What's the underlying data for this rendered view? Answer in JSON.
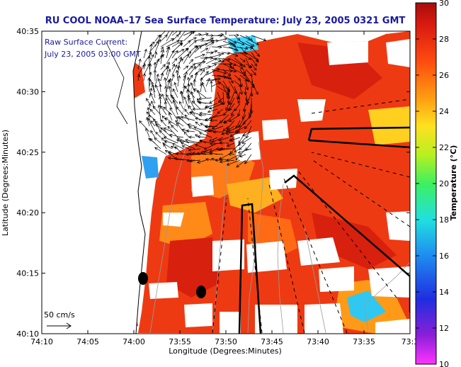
{
  "title": "RU COOL  NOAA–17  Sea Surface Temperature:  July 23, 2005 0321 GMT",
  "overlay": {
    "line1": "Raw Surface Current:",
    "line2": "July 23, 2005 03:00 GMT"
  },
  "scale_label": "50 cm/s",
  "axes": {
    "xlabel": "Longitude (Degrees:Minutes)",
    "ylabel": "Latitude (Degrees:Minutes)",
    "xticks": [
      "74:10",
      "74:05",
      "74:00",
      "73:55",
      "73:50",
      "73:45",
      "73:40",
      "73:35",
      "73:3"
    ],
    "yticks": [
      "40:35",
      "40:30",
      "40:25",
      "40:20",
      "40:15",
      "40:10"
    ]
  },
  "colorbar": {
    "label": "Temperature (°C)",
    "min": 10,
    "max": 30,
    "ticks": [
      "30",
      "28",
      "26",
      "24",
      "22",
      "20",
      "18",
      "16",
      "14",
      "12",
      "10"
    ]
  },
  "colors": {
    "land": "#ffffff",
    "title": "#1a1aa0",
    "warm": "#ee3a12",
    "hot": "#cc1a0a"
  }
}
